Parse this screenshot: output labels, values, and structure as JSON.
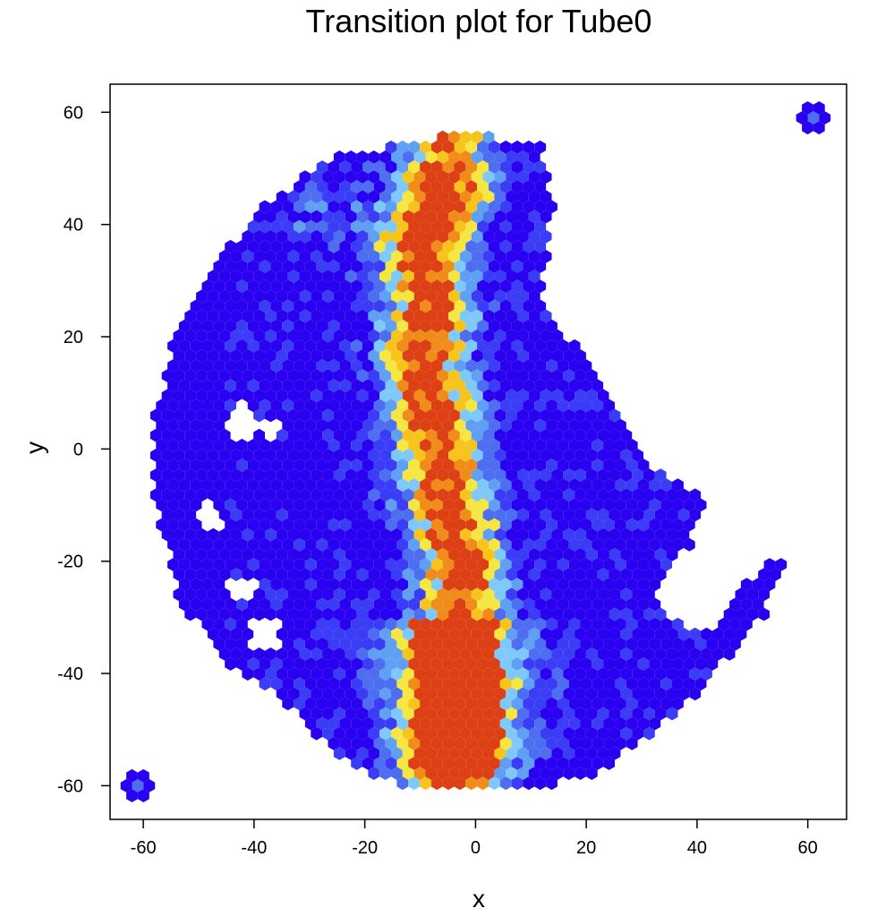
{
  "chart_data": {
    "type": "hexbin",
    "title": "Transition plot for Tube0",
    "xlabel": "x",
    "ylabel": "y",
    "xlim": [
      -66,
      67
    ],
    "ylim": [
      -66,
      65
    ],
    "x_ticks": [
      -60,
      -40,
      -20,
      0,
      20,
      40,
      60
    ],
    "y_ticks": [
      -60,
      -40,
      -20,
      0,
      20,
      40,
      60
    ],
    "grid": false,
    "color_scale": [
      "#2a00f0",
      "#3b3cf5",
      "#4d6ef0",
      "#5fa0f5",
      "#7ec9fa",
      "#f5e642",
      "#f7c41e",
      "#f08c1a",
      "#dc4014"
    ],
    "outlier_clusters": [
      {
        "x": -61,
        "y": -60
      },
      {
        "x": 61,
        "y": 59
      }
    ],
    "density_ridge": [
      {
        "y": -57,
        "x": -4
      },
      {
        "y": -45,
        "x": -3
      },
      {
        "y": -35,
        "x": -4
      },
      {
        "y": -25,
        "x": -2
      },
      {
        "y": -15,
        "x": -4
      },
      {
        "y": -5,
        "x": -6
      },
      {
        "y": 5,
        "x": -7
      },
      {
        "y": 15,
        "x": -10
      },
      {
        "y": 25,
        "x": -8
      },
      {
        "y": 35,
        "x": -10
      },
      {
        "y": 45,
        "x": -5
      }
    ]
  }
}
